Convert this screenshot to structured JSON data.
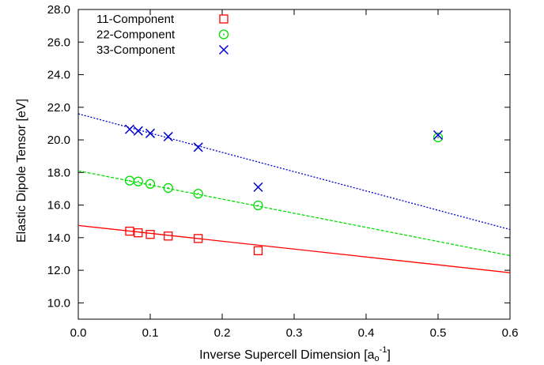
{
  "chart_data": {
    "type": "scatter",
    "xlabel": "Inverse Supercell Dimension [a₀⁻¹]",
    "xlabel_base": "Inverse Supercell Dimension [a",
    "xlabel_sub": "o",
    "xlabel_sup": "-1",
    "xlabel_end": "]",
    "ylabel": "Elastic Dipole Tensor [eV]",
    "xlim": [
      0.0,
      0.6
    ],
    "ylim": [
      9.0,
      28.0
    ],
    "x_ticks": [
      0.0,
      0.1,
      0.2,
      0.3,
      0.4,
      0.5,
      0.6
    ],
    "x_tick_labels": [
      "0.0",
      "0.1",
      "0.2",
      "0.3",
      "0.4",
      "0.5",
      "0.6"
    ],
    "y_ticks": [
      10,
      12,
      14,
      16,
      18,
      20,
      22,
      24,
      26,
      28
    ],
    "y_tick_labels": [
      "10.0",
      "12.0",
      "14.0",
      "16.0",
      "18.0",
      "20.0",
      "22.0",
      "24.0",
      "26.0",
      "28.0"
    ],
    "grid": false,
    "legend_position": "top-left",
    "series": [
      {
        "name": "11-Component",
        "color": "#ff0000",
        "marker": "square",
        "x": [
          0.0714,
          0.0833,
          0.1,
          0.125,
          0.1667,
          0.25
        ],
        "y": [
          14.4,
          14.3,
          14.2,
          14.1,
          13.95,
          13.2
        ],
        "fit": {
          "style": "solid",
          "x": [
            0.0,
            0.6
          ],
          "y": [
            14.75,
            11.85
          ]
        }
      },
      {
        "name": "22-Component",
        "color": "#00dd00",
        "marker": "circle-dot",
        "x": [
          0.0714,
          0.0833,
          0.1,
          0.125,
          0.1667,
          0.25,
          0.5
        ],
        "y": [
          17.5,
          17.45,
          17.3,
          17.05,
          16.7,
          15.98,
          20.15
        ],
        "fit": {
          "style": "dashed",
          "x": [
            0.0,
            0.6
          ],
          "y": [
            18.1,
            12.9
          ]
        }
      },
      {
        "name": "33-Component",
        "color": "#0000cc",
        "marker": "x",
        "x": [
          0.0714,
          0.0833,
          0.1,
          0.125,
          0.1667,
          0.25,
          0.5
        ],
        "y": [
          20.65,
          20.55,
          20.4,
          20.2,
          19.55,
          17.1,
          20.3
        ],
        "fit": {
          "style": "dotted",
          "x": [
            0.0,
            0.6
          ],
          "y": [
            21.6,
            14.5
          ]
        }
      }
    ]
  }
}
